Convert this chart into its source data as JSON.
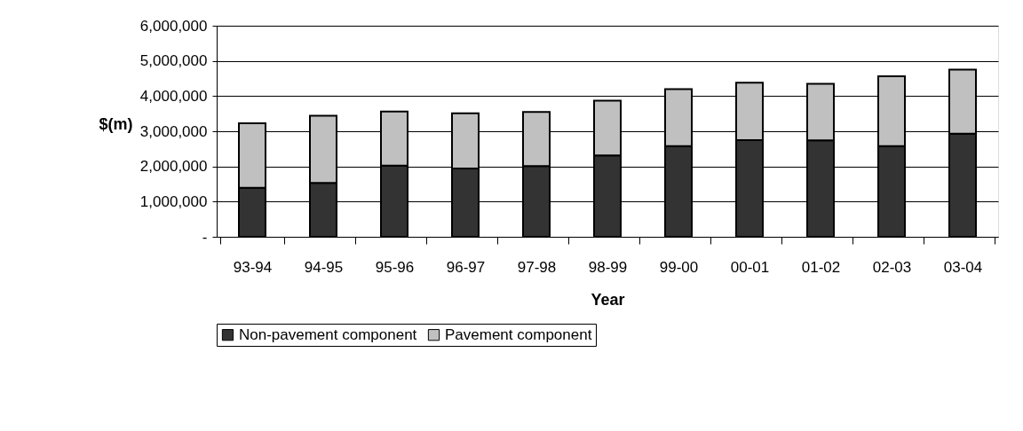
{
  "chart_data": {
    "type": "bar",
    "stacked": true,
    "xlabel": "Year",
    "ylabel": "$(m)",
    "categories": [
      "93-94",
      "94-95",
      "95-96",
      "96-97",
      "97-98",
      "98-99",
      "99-00",
      "00-01",
      "01-02",
      "02-03",
      "03-04"
    ],
    "series": [
      {
        "name": "Non-pavement component",
        "color": "#333333",
        "values": [
          1390000,
          1530000,
          2020000,
          1940000,
          2010000,
          2310000,
          2580000,
          2750000,
          2740000,
          2580000,
          2930000
        ]
      },
      {
        "name": "Pavement component",
        "color": "#c0c0c0",
        "values": [
          1840000,
          1910000,
          1540000,
          1570000,
          1540000,
          1560000,
          1620000,
          1630000,
          1610000,
          1980000,
          1820000
        ]
      }
    ],
    "ylim": [
      0,
      6000000
    ],
    "yticks": [
      {
        "value": 0,
        "label": "-"
      },
      {
        "value": 1000000,
        "label": "1,000,000"
      },
      {
        "value": 2000000,
        "label": "2,000,000"
      },
      {
        "value": 3000000,
        "label": "3,000,000"
      },
      {
        "value": 4000000,
        "label": "4,000,000"
      },
      {
        "value": 5000000,
        "label": "5,000,000"
      },
      {
        "value": 6000000,
        "label": "6,000,000"
      }
    ],
    "grid": "y",
    "legend": "bottom"
  }
}
